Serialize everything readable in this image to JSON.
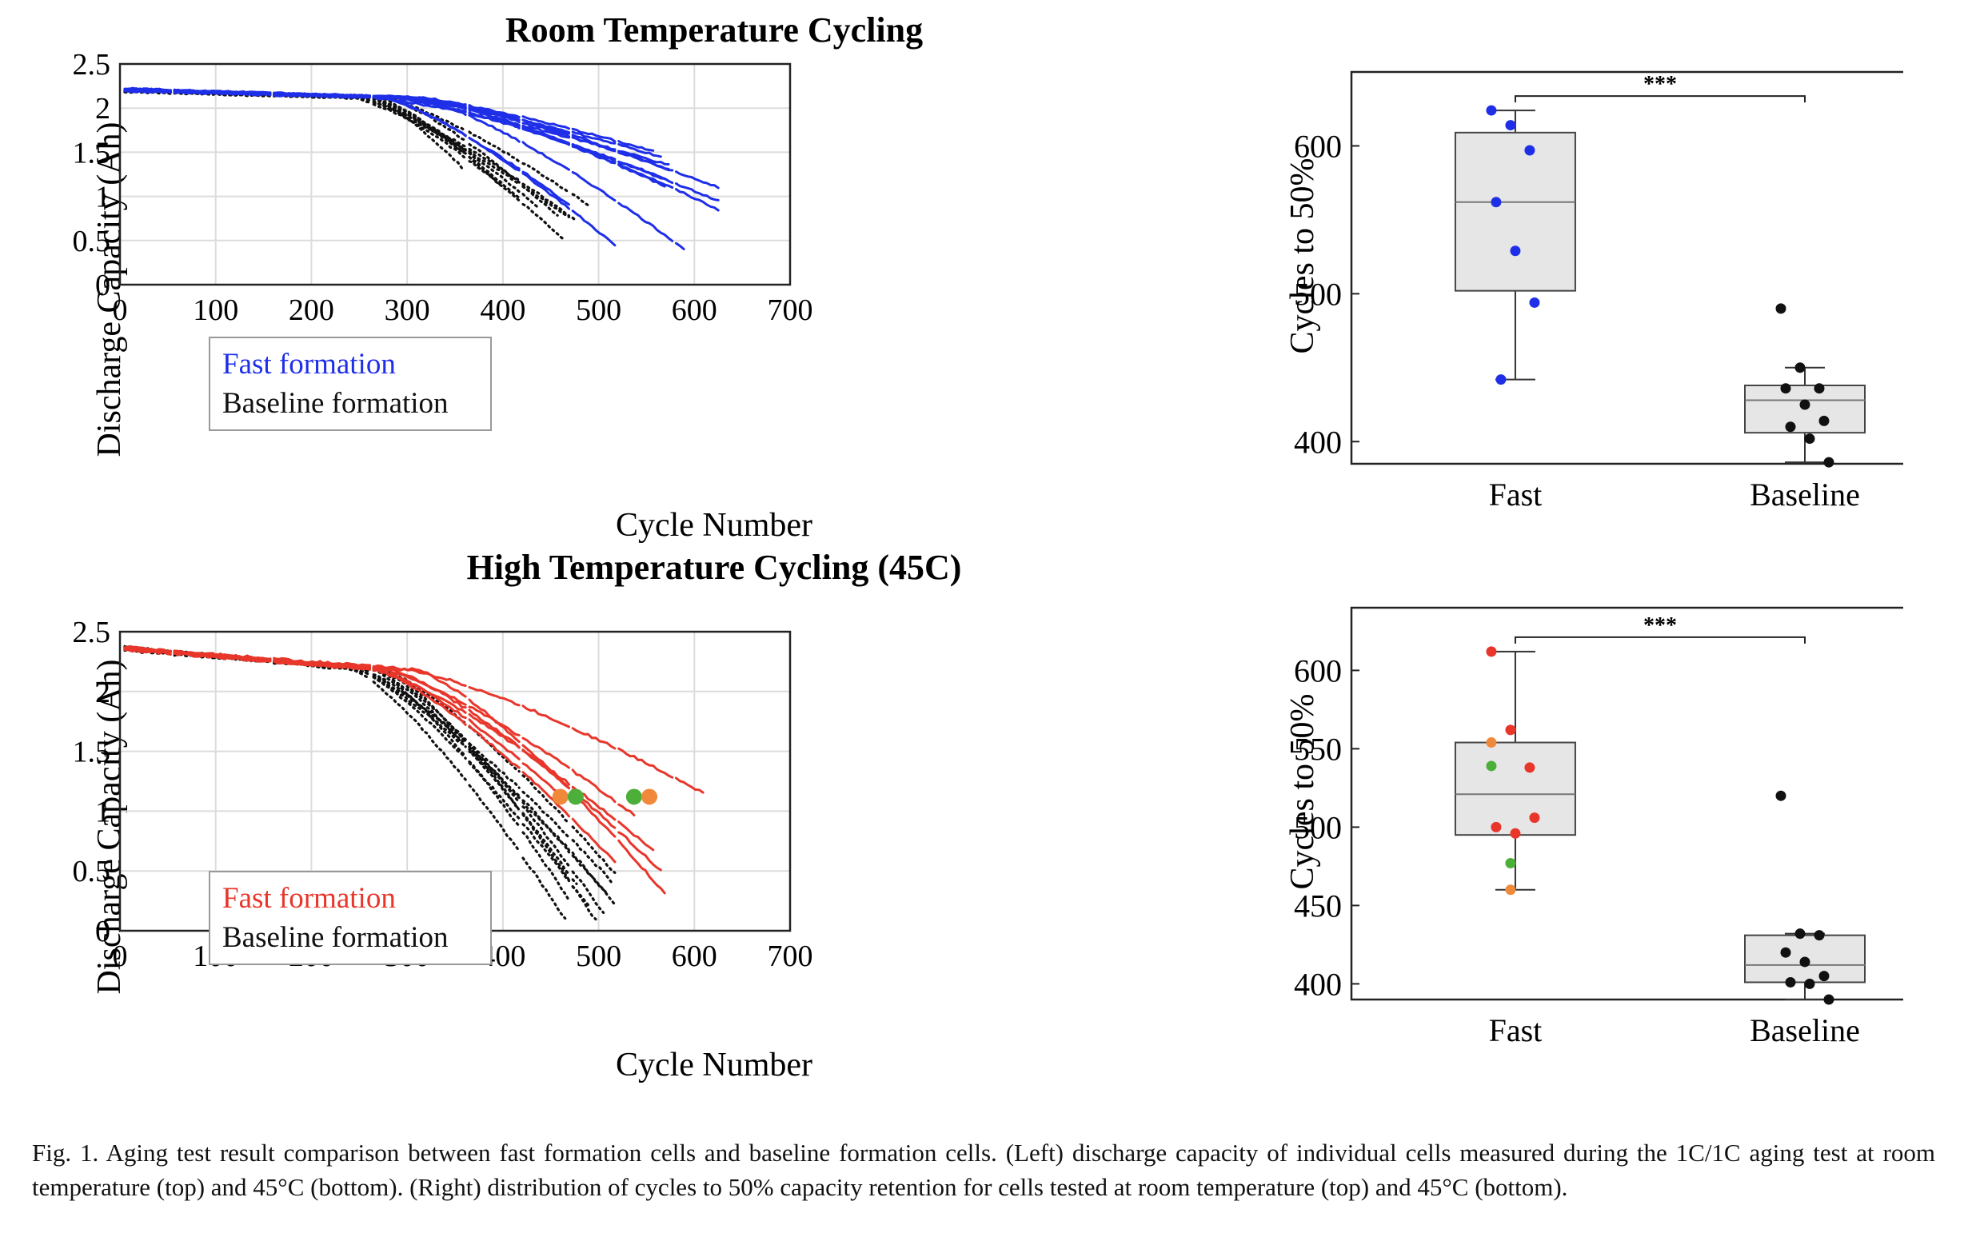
{
  "caption": "Fig. 1.  Aging test result comparison between fast formation cells and baseline formation cells. (Left) discharge capacity of individual cells measured during the 1C/1C aging test at room temperature (top) and 45°C (bottom). (Right) distribution of cycles to 50% capacity retention for cells tested at room temperature (top) and 45°C (bottom).",
  "colors": {
    "fast_rt": "#1f2fe8",
    "fast_ht": "#e8362b",
    "baseline": "#111111",
    "orange": "#f0893a",
    "green": "#4caf3a",
    "box_fill": "#e6e6e6"
  },
  "chart_data": [
    {
      "type": "line",
      "title": "Room Temperature Cycling",
      "xlabel": "Cycle Number",
      "ylabel": "Discharge Capacity (Ah)",
      "xlim": [
        0,
        700
      ],
      "ylim": [
        0,
        2.5
      ],
      "xticks": [
        0,
        100,
        200,
        300,
        400,
        500,
        600,
        700
      ],
      "yticks": [
        0,
        0.5,
        1,
        1.5,
        2,
        2.5
      ],
      "grid": true,
      "legend": {
        "placement": "bottom-left",
        "entries": [
          "Fast formation",
          "Baseline formation"
        ]
      },
      "series": [
        {
          "name": "Fast formation",
          "style": "solid",
          "end_cycles": [
            470,
            520,
            565,
            575,
            570,
            572,
            575,
            560,
            590,
            625,
            625,
            625
          ],
          "end_capacities": [
            0.9,
            0.42,
            1.45,
            1.3,
            1.2,
            1.1,
            1.35,
            1.5,
            0.4,
            1.1,
            0.95,
            0.85
          ],
          "start_capacity": 2.21
        },
        {
          "name": "Baseline formation",
          "style": "dotted",
          "end_cycles": [
            360,
            370,
            400,
            420,
            440,
            460,
            465,
            470,
            490,
            480
          ],
          "end_capacities": [
            1.3,
            1.45,
            1.1,
            0.95,
            0.85,
            0.75,
            0.5,
            0.75,
            0.9,
            0.7
          ],
          "start_capacity": 2.2
        }
      ]
    },
    {
      "type": "line",
      "title": "High Temperature Cycling (45C)",
      "xlabel": "Cycle Number",
      "ylabel": "Discharge Capacity (Ah)",
      "xlim": [
        0,
        700
      ],
      "ylim": [
        0,
        2.5
      ],
      "xticks": [
        0,
        100,
        200,
        300,
        400,
        500,
        600,
        700
      ],
      "yticks": [
        0,
        0.5,
        1,
        1.5,
        2,
        2.5
      ],
      "grid": true,
      "legend": {
        "placement": "bottom-left",
        "entries": [
          "Fast formation",
          "Baseline formation"
        ]
      },
      "series": [
        {
          "name": "Fast formation",
          "style": "solid",
          "end_cycles": [
            465,
            520,
            540,
            560,
            565,
            570,
            610
          ],
          "end_capacities": [
            1.1,
            0.55,
            0.95,
            0.65,
            0.5,
            0.3,
            1.15
          ],
          "start_capacity": 2.36
        },
        {
          "name": "Baseline formation",
          "style": "dotted",
          "end_cycles": [
            465,
            470,
            480,
            490,
            500,
            505,
            510,
            515,
            520,
            520
          ],
          "end_capacities": [
            0.1,
            0.25,
            0.35,
            0.2,
            0.05,
            0.15,
            0.3,
            0.4,
            0.45,
            0.2
          ],
          "start_capacity": 2.36
        }
      ],
      "markers": [
        {
          "cycle": 460,
          "capacity": 1.12,
          "color": "orange"
        },
        {
          "cycle": 476,
          "capacity": 1.12,
          "color": "green"
        },
        {
          "cycle": 537,
          "capacity": 1.12,
          "color": "green"
        },
        {
          "cycle": 553,
          "capacity": 1.12,
          "color": "orange"
        }
      ]
    },
    {
      "type": "scatter",
      "subtype": "box",
      "ylabel": "Cycles to 50%",
      "categories": [
        "Fast",
        "Baseline"
      ],
      "ylim": [
        385,
        650
      ],
      "yticks": [
        400,
        500,
        600
      ],
      "significance": "***",
      "boxes": [
        {
          "name": "Fast",
          "whisker_low": 442,
          "q1": 502,
          "median": 562,
          "q3": 609,
          "whisker_high": 624
        },
        {
          "name": "Baseline",
          "whisker_low": 386,
          "q1": 406,
          "median": 428,
          "q3": 438,
          "whisker_high": 450
        }
      ],
      "points": [
        {
          "category": "Fast",
          "values": [
            624,
            614,
            597,
            562,
            529,
            494,
            442
          ],
          "color": "fast_rt"
        },
        {
          "category": "Baseline",
          "values": [
            490,
            450,
            436,
            436,
            425,
            414,
            410,
            402,
            386
          ],
          "color": "baseline"
        }
      ]
    },
    {
      "type": "scatter",
      "subtype": "box",
      "ylabel": "Cycles to 50%",
      "categories": [
        "Fast",
        "Baseline"
      ],
      "ylim": [
        390,
        640
      ],
      "yticks": [
        400,
        450,
        500,
        550,
        600
      ],
      "significance": "***",
      "boxes": [
        {
          "name": "Fast",
          "whisker_low": 460,
          "q1": 495,
          "median": 521,
          "q3": 554,
          "whisker_high": 612
        },
        {
          "name": "Baseline",
          "whisker_low": 390,
          "q1": 401,
          "median": 412,
          "q3": 431,
          "whisker_high": 432
        }
      ],
      "points": [
        {
          "category": "Fast",
          "values": [
            612,
            562,
            538,
            500,
            496,
            506
          ],
          "color": "fast_ht"
        },
        {
          "category": "Fast",
          "values": [
            554,
            460
          ],
          "color": "orange"
        },
        {
          "category": "Fast",
          "values": [
            539,
            477
          ],
          "color": "green"
        },
        {
          "category": "Baseline",
          "values": [
            520,
            432,
            431,
            420,
            414,
            405,
            401,
            400,
            390
          ],
          "color": "baseline"
        }
      ]
    }
  ]
}
